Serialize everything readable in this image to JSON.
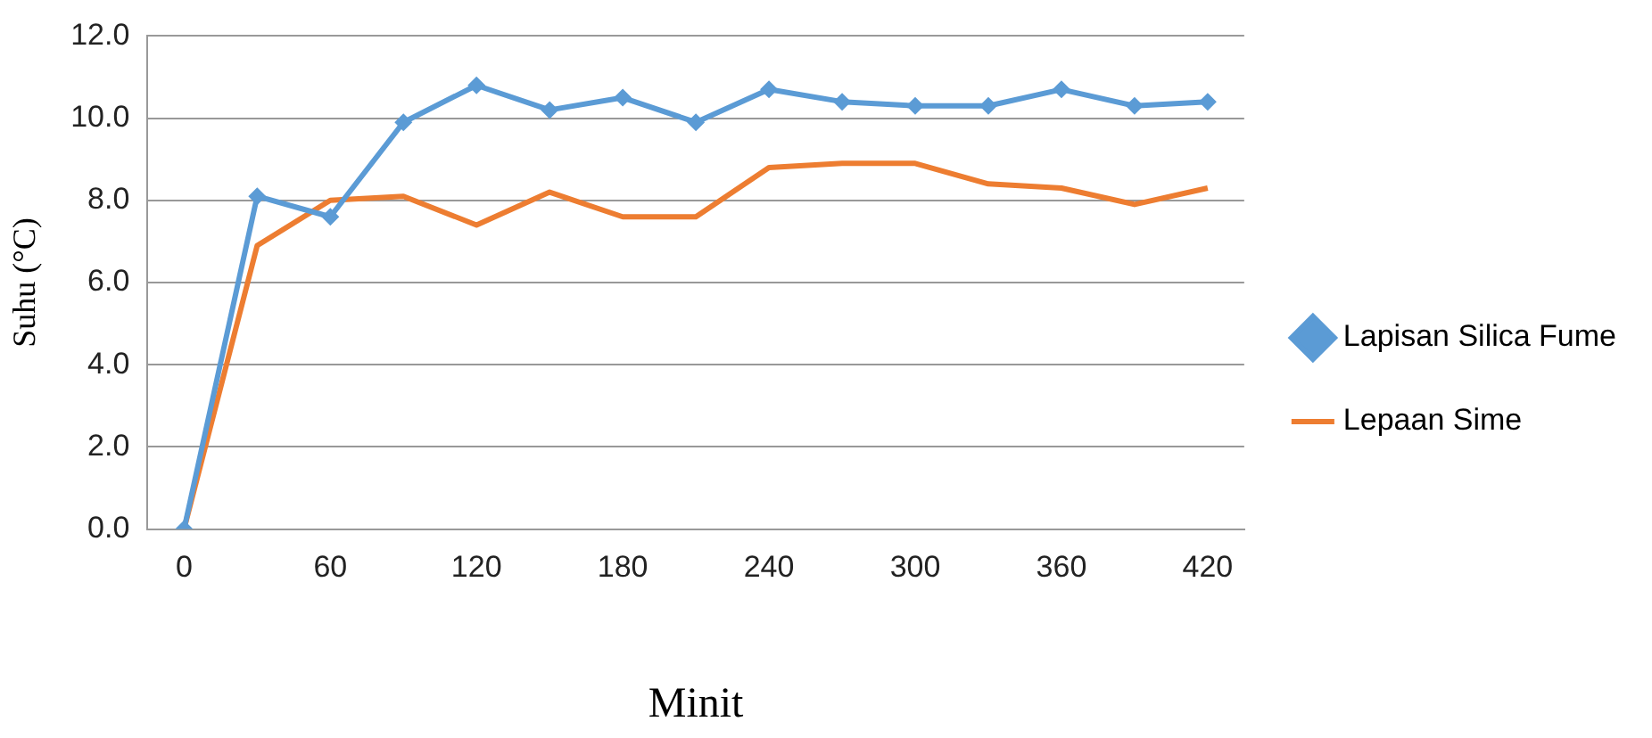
{
  "chart_data": {
    "type": "line",
    "xlabel": "Minit",
    "ylabel": "Suhu (°C)",
    "categories": [
      "0",
      null,
      "60",
      null,
      "120",
      null,
      "180",
      null,
      "240",
      null,
      "300",
      null,
      "360",
      null,
      "420"
    ],
    "series": [
      {
        "name": "Lapisan Silica Fume",
        "color": "#5b9bd5",
        "marker": "diamond",
        "values": [
          0,
          8.1,
          7.6,
          9.9,
          10.8,
          10.2,
          10.5,
          9.9,
          10.7,
          10.4,
          10.3,
          10.3,
          10.7,
          10.3,
          10.4
        ]
      },
      {
        "name": "Lepaan Sime",
        "color": "#ed7d31",
        "marker": "none",
        "values": [
          0,
          6.9,
          8.0,
          8.1,
          7.4,
          8.2,
          7.6,
          7.6,
          8.8,
          8.9,
          8.9,
          8.4,
          8.3,
          7.9,
          8.3
        ]
      }
    ],
    "ylim": [
      0,
      12
    ],
    "yticks": [
      {
        "value": 0,
        "label": "0.0"
      },
      {
        "value": 2,
        "label": "2.0"
      },
      {
        "value": 4,
        "label": "4.0"
      },
      {
        "value": 6,
        "label": "6.0"
      },
      {
        "value": 8,
        "label": "8.0"
      },
      {
        "value": 10,
        "label": "10.0"
      },
      {
        "value": 12,
        "label": "12.0"
      }
    ],
    "grid": "y",
    "legend": "right",
    "line_style": "solid"
  }
}
